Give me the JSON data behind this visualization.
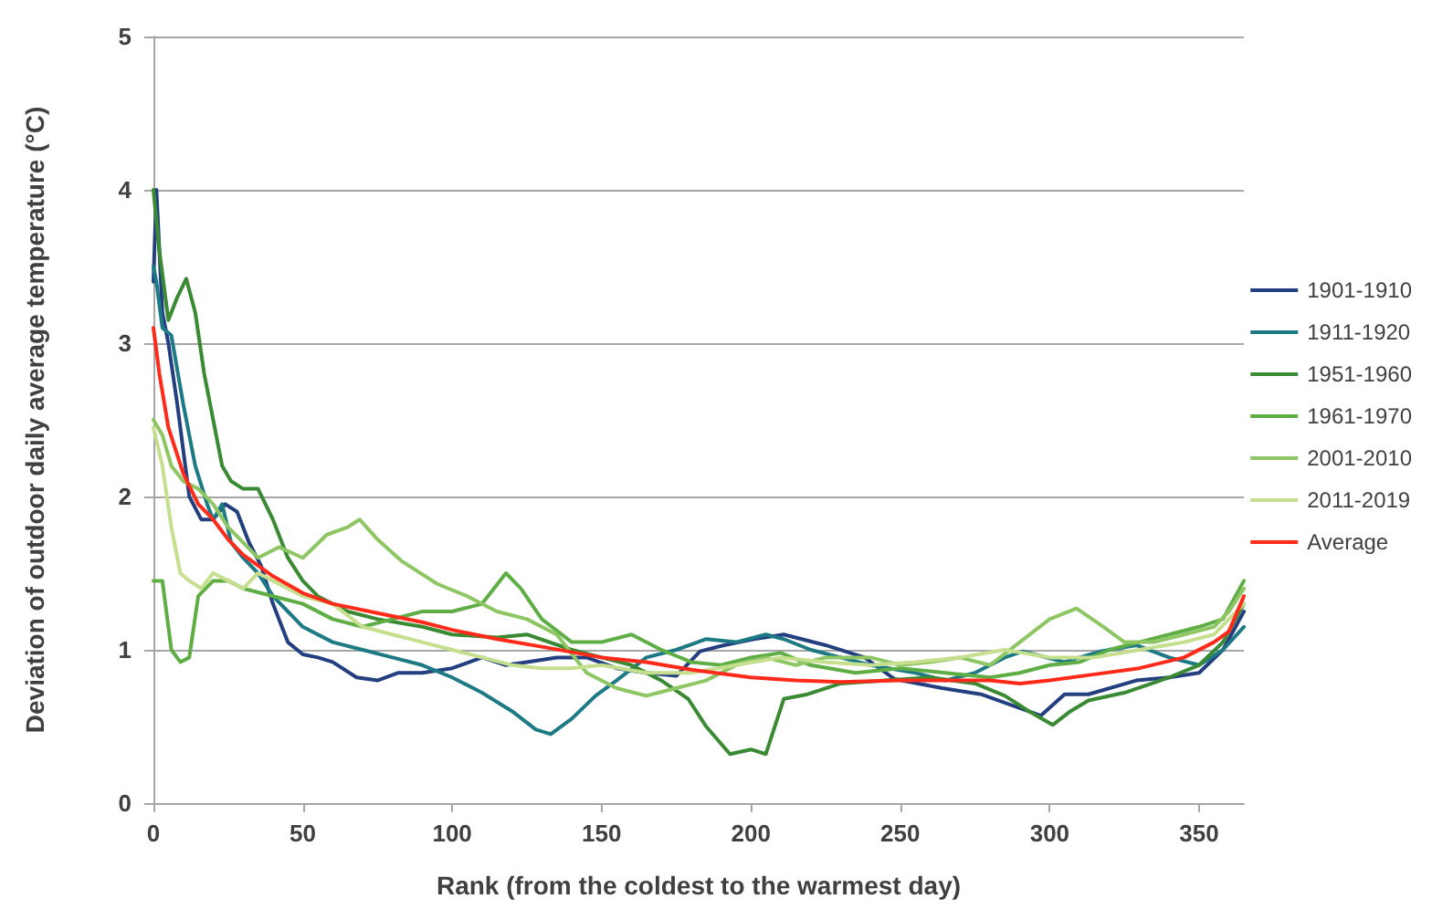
{
  "chart_data": {
    "type": "line",
    "xlabel": "Rank (from the coldest to the warmest day)",
    "ylabel": "Deviation of outdoor daily average temperature (°C)",
    "xlim": [
      0,
      365
    ],
    "xticks": [
      0,
      50,
      100,
      150,
      200,
      250,
      300,
      350
    ],
    "ylim": [
      0,
      5
    ],
    "yticks": [
      0,
      1,
      2,
      3,
      4,
      5
    ],
    "grid": "y",
    "legend": "right",
    "marker": "none",
    "line_style": "solid",
    "series": [
      {
        "name": "1901-1910",
        "color": "#243f7f",
        "x": [
          0,
          1,
          3,
          5,
          8,
          12,
          16,
          20,
          24,
          28,
          32,
          36,
          40,
          45,
          50,
          55,
          60,
          68,
          75,
          82,
          90,
          100,
          110,
          118,
          125,
          135,
          145,
          155,
          165,
          175,
          183,
          191,
          201,
          211,
          225,
          238,
          248,
          264,
          277,
          290,
          297,
          305,
          313,
          329,
          340,
          350,
          358,
          365
        ],
        "values": [
          3.4,
          4.0,
          3.2,
          3.0,
          2.6,
          2.0,
          1.85,
          1.85,
          1.95,
          1.9,
          1.7,
          1.55,
          1.3,
          1.05,
          0.97,
          0.95,
          0.92,
          0.82,
          0.8,
          0.85,
          0.85,
          0.88,
          0.95,
          0.9,
          0.92,
          0.95,
          0.95,
          0.88,
          0.85,
          0.83,
          0.99,
          1.03,
          1.07,
          1.1,
          1.03,
          0.95,
          0.81,
          0.75,
          0.71,
          0.62,
          0.57,
          0.71,
          0.71,
          0.8,
          0.82,
          0.85,
          1.0,
          1.25
        ]
      },
      {
        "name": "1911-1920",
        "color": "#1d7a85",
        "x": [
          0,
          1,
          3,
          6,
          10,
          14,
          18,
          20,
          23,
          26,
          30,
          35,
          40,
          45,
          50,
          60,
          70,
          80,
          90,
          100,
          110,
          120,
          128,
          133,
          140,
          148,
          155,
          165,
          175,
          185,
          195,
          205,
          211,
          220,
          230,
          240,
          255,
          265,
          275,
          285,
          291,
          305,
          317,
          329,
          340,
          350,
          358,
          365
        ],
        "values": [
          3.5,
          3.4,
          3.1,
          3.05,
          2.6,
          2.2,
          1.95,
          1.85,
          1.95,
          1.7,
          1.6,
          1.5,
          1.35,
          1.25,
          1.15,
          1.05,
          1.0,
          0.95,
          0.9,
          0.82,
          0.72,
          0.6,
          0.48,
          0.45,
          0.55,
          0.7,
          0.8,
          0.95,
          1.0,
          1.07,
          1.05,
          1.1,
          1.07,
          1.0,
          0.95,
          0.9,
          0.85,
          0.8,
          0.85,
          0.95,
          0.99,
          0.92,
          0.99,
          1.03,
          0.95,
          0.9,
          1.0,
          1.15
        ]
      },
      {
        "name": "1951-1960",
        "color": "#3a8a34",
        "x": [
          0,
          2,
          5,
          8,
          11,
          14,
          17,
          20,
          23,
          26,
          30,
          35,
          40,
          45,
          50,
          55,
          65,
          75,
          90,
          100,
          115,
          125,
          140,
          150,
          160,
          170,
          179,
          185,
          193,
          200,
          205,
          211,
          219,
          230,
          245,
          260,
          275,
          285,
          293,
          301,
          307,
          313,
          325,
          340,
          350,
          358,
          365
        ],
        "values": [
          4.0,
          3.6,
          3.15,
          3.3,
          3.42,
          3.2,
          2.8,
          2.5,
          2.2,
          2.1,
          2.05,
          2.05,
          1.85,
          1.6,
          1.45,
          1.35,
          1.25,
          1.2,
          1.15,
          1.1,
          1.08,
          1.1,
          1.0,
          0.95,
          0.9,
          0.8,
          0.68,
          0.5,
          0.32,
          0.35,
          0.32,
          0.68,
          0.71,
          0.78,
          0.8,
          0.82,
          0.78,
          0.7,
          0.6,
          0.51,
          0.6,
          0.67,
          0.72,
          0.82,
          0.9,
          1.05,
          1.3
        ]
      },
      {
        "name": "1961-1970",
        "color": "#5fae45",
        "x": [
          0,
          3,
          6,
          9,
          12,
          15,
          20,
          25,
          30,
          40,
          50,
          60,
          70,
          80,
          90,
          100,
          110,
          118,
          123,
          130,
          140,
          150,
          160,
          170,
          180,
          190,
          200,
          210,
          220,
          235,
          250,
          265,
          280,
          290,
          300,
          310,
          320,
          330,
          340,
          350,
          358,
          365
        ],
        "values": [
          1.45,
          1.45,
          1.0,
          0.92,
          0.95,
          1.35,
          1.45,
          1.45,
          1.4,
          1.35,
          1.3,
          1.2,
          1.15,
          1.2,
          1.25,
          1.25,
          1.3,
          1.5,
          1.4,
          1.2,
          1.05,
          1.05,
          1.1,
          1.0,
          0.92,
          0.9,
          0.95,
          0.98,
          0.9,
          0.85,
          0.88,
          0.85,
          0.82,
          0.85,
          0.9,
          0.92,
          1.0,
          1.05,
          1.1,
          1.15,
          1.2,
          1.45
        ]
      },
      {
        "name": "2001-2010",
        "color": "#8dc663",
        "x": [
          0,
          3,
          6,
          10,
          15,
          20,
          25,
          30,
          35,
          42,
          50,
          58,
          65,
          69,
          75,
          83,
          95,
          105,
          115,
          125,
          135,
          145,
          155,
          165,
          175,
          185,
          195,
          205,
          215,
          225,
          240,
          250,
          260,
          270,
          280,
          290,
          300,
          309,
          318,
          325,
          335,
          345,
          355,
          360,
          365
        ],
        "values": [
          2.5,
          2.4,
          2.2,
          2.1,
          2.05,
          1.95,
          1.8,
          1.7,
          1.6,
          1.67,
          1.6,
          1.75,
          1.8,
          1.85,
          1.72,
          1.58,
          1.43,
          1.35,
          1.25,
          1.2,
          1.1,
          0.85,
          0.75,
          0.7,
          0.75,
          0.8,
          0.9,
          0.95,
          0.9,
          0.95,
          0.95,
          0.9,
          0.92,
          0.95,
          0.9,
          1.05,
          1.2,
          1.27,
          1.15,
          1.05,
          1.05,
          1.1,
          1.15,
          1.25,
          1.4
        ]
      },
      {
        "name": "2011-2019",
        "color": "#c5df8e",
        "x": [
          0,
          3,
          6,
          9,
          12,
          16,
          20,
          25,
          30,
          35,
          40,
          50,
          60,
          70,
          80,
          90,
          100,
          110,
          120,
          130,
          140,
          150,
          165,
          180,
          195,
          210,
          225,
          240,
          255,
          270,
          285,
          300,
          315,
          330,
          345,
          355,
          365
        ],
        "values": [
          2.45,
          2.2,
          1.8,
          1.5,
          1.45,
          1.4,
          1.5,
          1.45,
          1.4,
          1.5,
          1.45,
          1.35,
          1.3,
          1.15,
          1.1,
          1.05,
          1.0,
          0.95,
          0.9,
          0.88,
          0.88,
          0.9,
          0.85,
          0.85,
          0.9,
          0.95,
          0.92,
          0.9,
          0.92,
          0.95,
          1.0,
          0.95,
          0.95,
          1.0,
          1.05,
          1.1,
          1.3
        ]
      },
      {
        "name": "Average",
        "color": "#ff2a1a",
        "x": [
          0,
          2,
          5,
          10,
          15,
          20,
          25,
          30,
          40,
          50,
          60,
          75,
          90,
          100,
          115,
          130,
          150,
          165,
          180,
          200,
          215,
          230,
          250,
          265,
          280,
          290,
          300,
          315,
          330,
          345,
          355,
          360,
          365
        ],
        "values": [
          3.1,
          2.8,
          2.45,
          2.15,
          1.95,
          1.85,
          1.72,
          1.62,
          1.48,
          1.37,
          1.3,
          1.24,
          1.18,
          1.13,
          1.07,
          1.02,
          0.95,
          0.92,
          0.87,
          0.82,
          0.8,
          0.79,
          0.8,
          0.8,
          0.8,
          0.78,
          0.8,
          0.84,
          0.88,
          0.95,
          1.05,
          1.12,
          1.35
        ]
      }
    ]
  }
}
